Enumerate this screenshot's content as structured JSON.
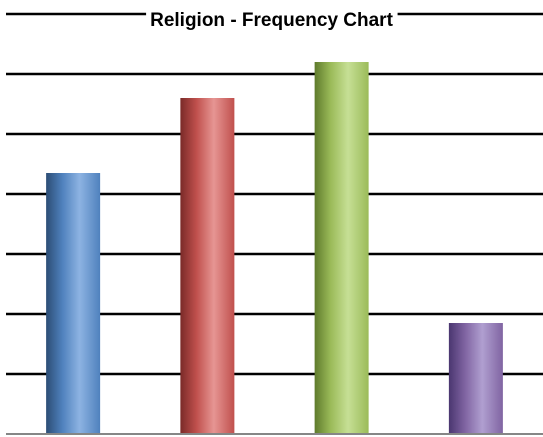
{
  "chart_data": {
    "type": "bar",
    "title": "Religion - Frequency Chart",
    "categories": [
      "",
      "",
      "",
      ""
    ],
    "values": [
      4.35,
      5.6,
      6.2,
      1.85
    ],
    "ylim": [
      0,
      7
    ],
    "grid": true,
    "legend": "none",
    "colors": {
      "bars": [
        "#4f81bd",
        "#c0504d",
        "#9bbb59",
        "#8064a2"
      ],
      "bars_light": [
        "#8db3e2",
        "#e69593",
        "#c6df95",
        "#b09fd0"
      ],
      "bars_dark": [
        "#2c4d75",
        "#7a2a28",
        "#5f7a2c",
        "#4a3670"
      ],
      "grid": "#000000",
      "axis": "#868686"
    }
  }
}
